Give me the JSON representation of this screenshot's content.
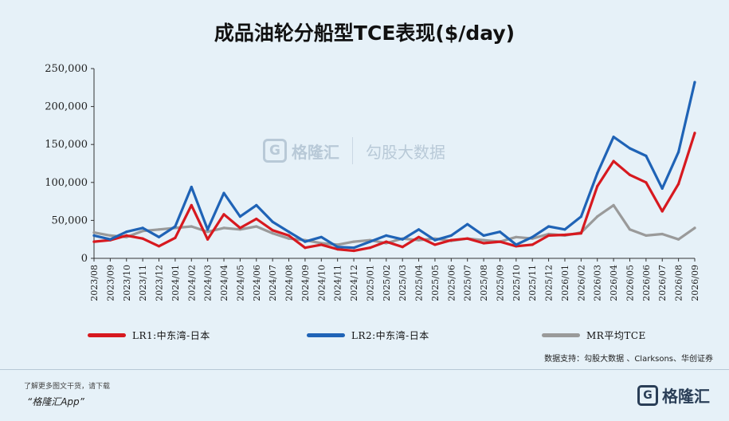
{
  "title": "成品油轮分船型TCE表现($/day)",
  "watermark": {
    "brand": "格隆汇",
    "partner": "勾股大数据"
  },
  "source": "数据支持：勾股大数据 、Clarksons、华创证券",
  "footer": {
    "note": "了解更多图文干货，请下载",
    "app": "“格隆汇App”",
    "logo": "格隆汇"
  },
  "chart_data": {
    "type": "line",
    "title": "成品油轮分船型TCE表现($/day)",
    "xlabel": "",
    "ylabel": "",
    "ylim": [
      0,
      250000
    ],
    "yticks": [
      "0",
      "50,000",
      "100,000",
      "150,000",
      "200,000",
      "250,000"
    ],
    "categories": [
      "2023/08",
      "2023/09",
      "2023/10",
      "2023/11",
      "2023/12",
      "2024/01",
      "2024/02",
      "2024/03",
      "2024/04",
      "2024/05",
      "2024/06",
      "2024/07",
      "2024/08",
      "2024/09",
      "2024/10",
      "2024/11",
      "2024/12",
      "2025/01",
      "2025/02",
      "2025/03",
      "2025/04",
      "2025/05",
      "2025/06",
      "2025/07",
      "2025/08",
      "2025/09",
      "2025/10",
      "2025/11",
      "2025/12",
      "2026/01",
      "2026/02",
      "2026/03",
      "2026/04",
      "2026/05",
      "2026/06",
      "2026/07",
      "2026/08",
      "2026/09"
    ],
    "legend_position": "bottom",
    "grid": false,
    "series": [
      {
        "name": "LR1:中东湾-日本",
        "color": "#d7191f",
        "values": [
          22000,
          24000,
          30000,
          26000,
          16000,
          27000,
          70000,
          25000,
          58000,
          40000,
          52000,
          37000,
          30000,
          14000,
          18000,
          12000,
          10000,
          14000,
          22000,
          15000,
          28000,
          18000,
          24000,
          26000,
          20000,
          22000,
          16000,
          18000,
          30000,
          31000,
          33000,
          95000,
          128000,
          110000,
          100000,
          62000,
          98000,
          165000
        ]
      },
      {
        "name": "LR2:中东湾-日本",
        "color": "#1f63b6",
        "values": [
          30000,
          25000,
          35000,
          40000,
          28000,
          42000,
          94000,
          38000,
          86000,
          55000,
          70000,
          48000,
          35000,
          22000,
          28000,
          15000,
          14000,
          22000,
          30000,
          25000,
          38000,
          24000,
          30000,
          45000,
          30000,
          35000,
          18000,
          28000,
          42000,
          38000,
          55000,
          112000,
          160000,
          145000,
          135000,
          92000,
          140000,
          232000
        ]
      },
      {
        "name": "MR平均TCE",
        "color": "#9a9a9a",
        "values": [
          34000,
          30000,
          28000,
          36000,
          38000,
          40000,
          42000,
          35000,
          40000,
          38000,
          42000,
          33000,
          26000,
          24000,
          20000,
          18000,
          22000,
          24000,
          20000,
          26000,
          24000,
          26000,
          23000,
          26000,
          24000,
          22000,
          28000,
          26000,
          32000,
          30000,
          34000,
          55000,
          70000,
          38000,
          30000,
          32000,
          25000,
          40000
        ]
      }
    ]
  }
}
